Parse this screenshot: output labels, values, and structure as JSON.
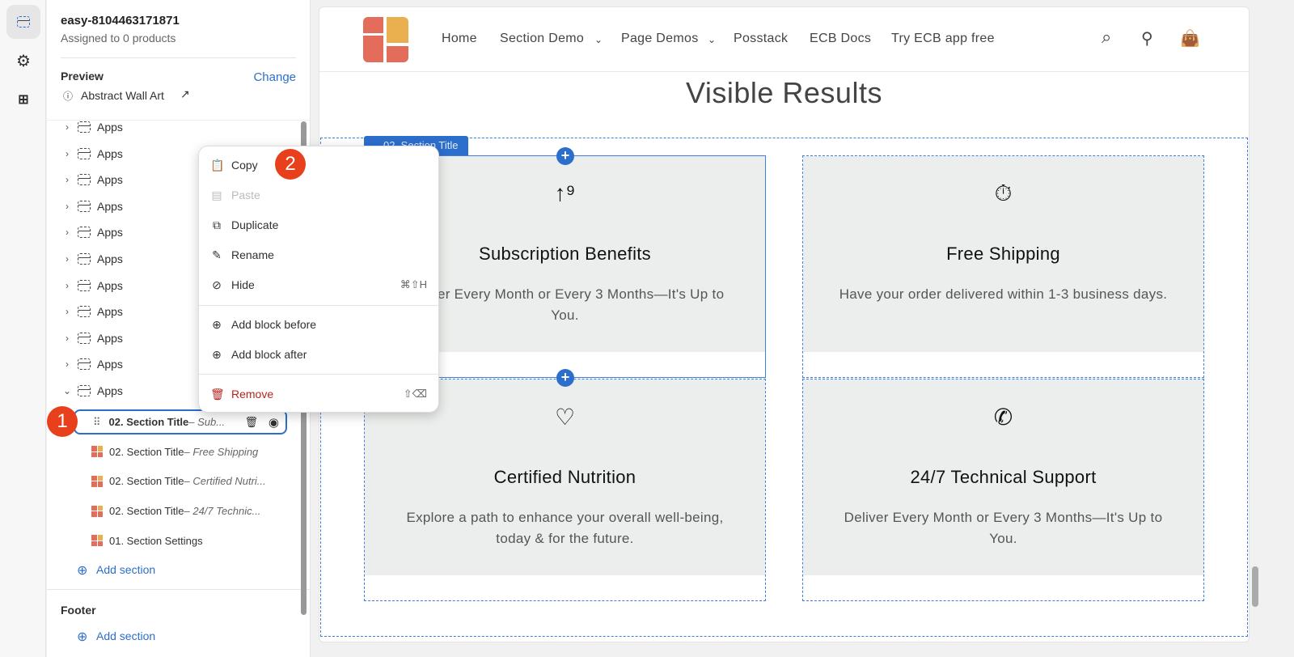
{
  "rail": {
    "icons": [
      "sections-icon",
      "gear-icon",
      "apps-add-icon"
    ]
  },
  "sidebar": {
    "template_name": "easy-8104463171871",
    "assigned": "Assigned to 0 products",
    "preview_label": "Preview",
    "change_label": "Change",
    "preview_product": "Abstract Wall Art",
    "apps_items": [
      "Apps",
      "Apps",
      "Apps",
      "Apps",
      "Apps",
      "Apps",
      "Apps",
      "Apps",
      "Apps",
      "Apps",
      "Apps"
    ],
    "selected_block": {
      "name": "02. Section Title",
      "suffix": " – Sub..."
    },
    "blocks": [
      {
        "name": "02. Section Title",
        "suffix": " – Free Shipping"
      },
      {
        "name": "02. Section Title",
        "suffix": " – Certified Nutri..."
      },
      {
        "name": "02. Section Title",
        "suffix": " – 24/7 Technic..."
      },
      {
        "name": "01. Section Settings",
        "suffix": ""
      }
    ],
    "add_section": "Add section",
    "footer_label": "Footer",
    "footer_add_section": "Add section"
  },
  "badges": {
    "one": "1",
    "two": "2"
  },
  "context_menu": {
    "copy": "Copy",
    "paste": "Paste",
    "duplicate": "Duplicate",
    "rename": "Rename",
    "hide": "Hide",
    "hide_shortcut": "⌘⇧H",
    "add_before": "Add block before",
    "add_after": "Add block after",
    "remove": "Remove",
    "remove_shortcut": "⇧⌫"
  },
  "store": {
    "nav": [
      "Home",
      "Section Demo",
      "Page Demos",
      "Posstack",
      "ECB Docs",
      "Try ECB app free"
    ],
    "heading": "Visible Results",
    "section_tag": "02. Section Title",
    "cards": [
      {
        "icon": "sort-numeric-icon",
        "title": "Subscription Benefits",
        "text": "Deliver Every Month or Every 3 Months—It's Up to You."
      },
      {
        "icon": "stopwatch-icon",
        "title": "Free Shipping",
        "text": "Have your order delivered within 1-3 business days."
      },
      {
        "icon": "heart-pulse-icon",
        "title": "Certified Nutrition",
        "text": "Explore a path to enhance your overall well-being, today & for the future."
      },
      {
        "icon": "whatsapp-icon",
        "title": "24/7 Technical Support",
        "text": "Deliver Every Month or Every 3 Months—It's Up to You."
      }
    ]
  },
  "colors": {
    "accent": "#2c6ecb",
    "danger": "#b3261e",
    "badge": "#e8401c",
    "logo_red": "#e36d5a",
    "logo_yellow": "#eab04f"
  }
}
